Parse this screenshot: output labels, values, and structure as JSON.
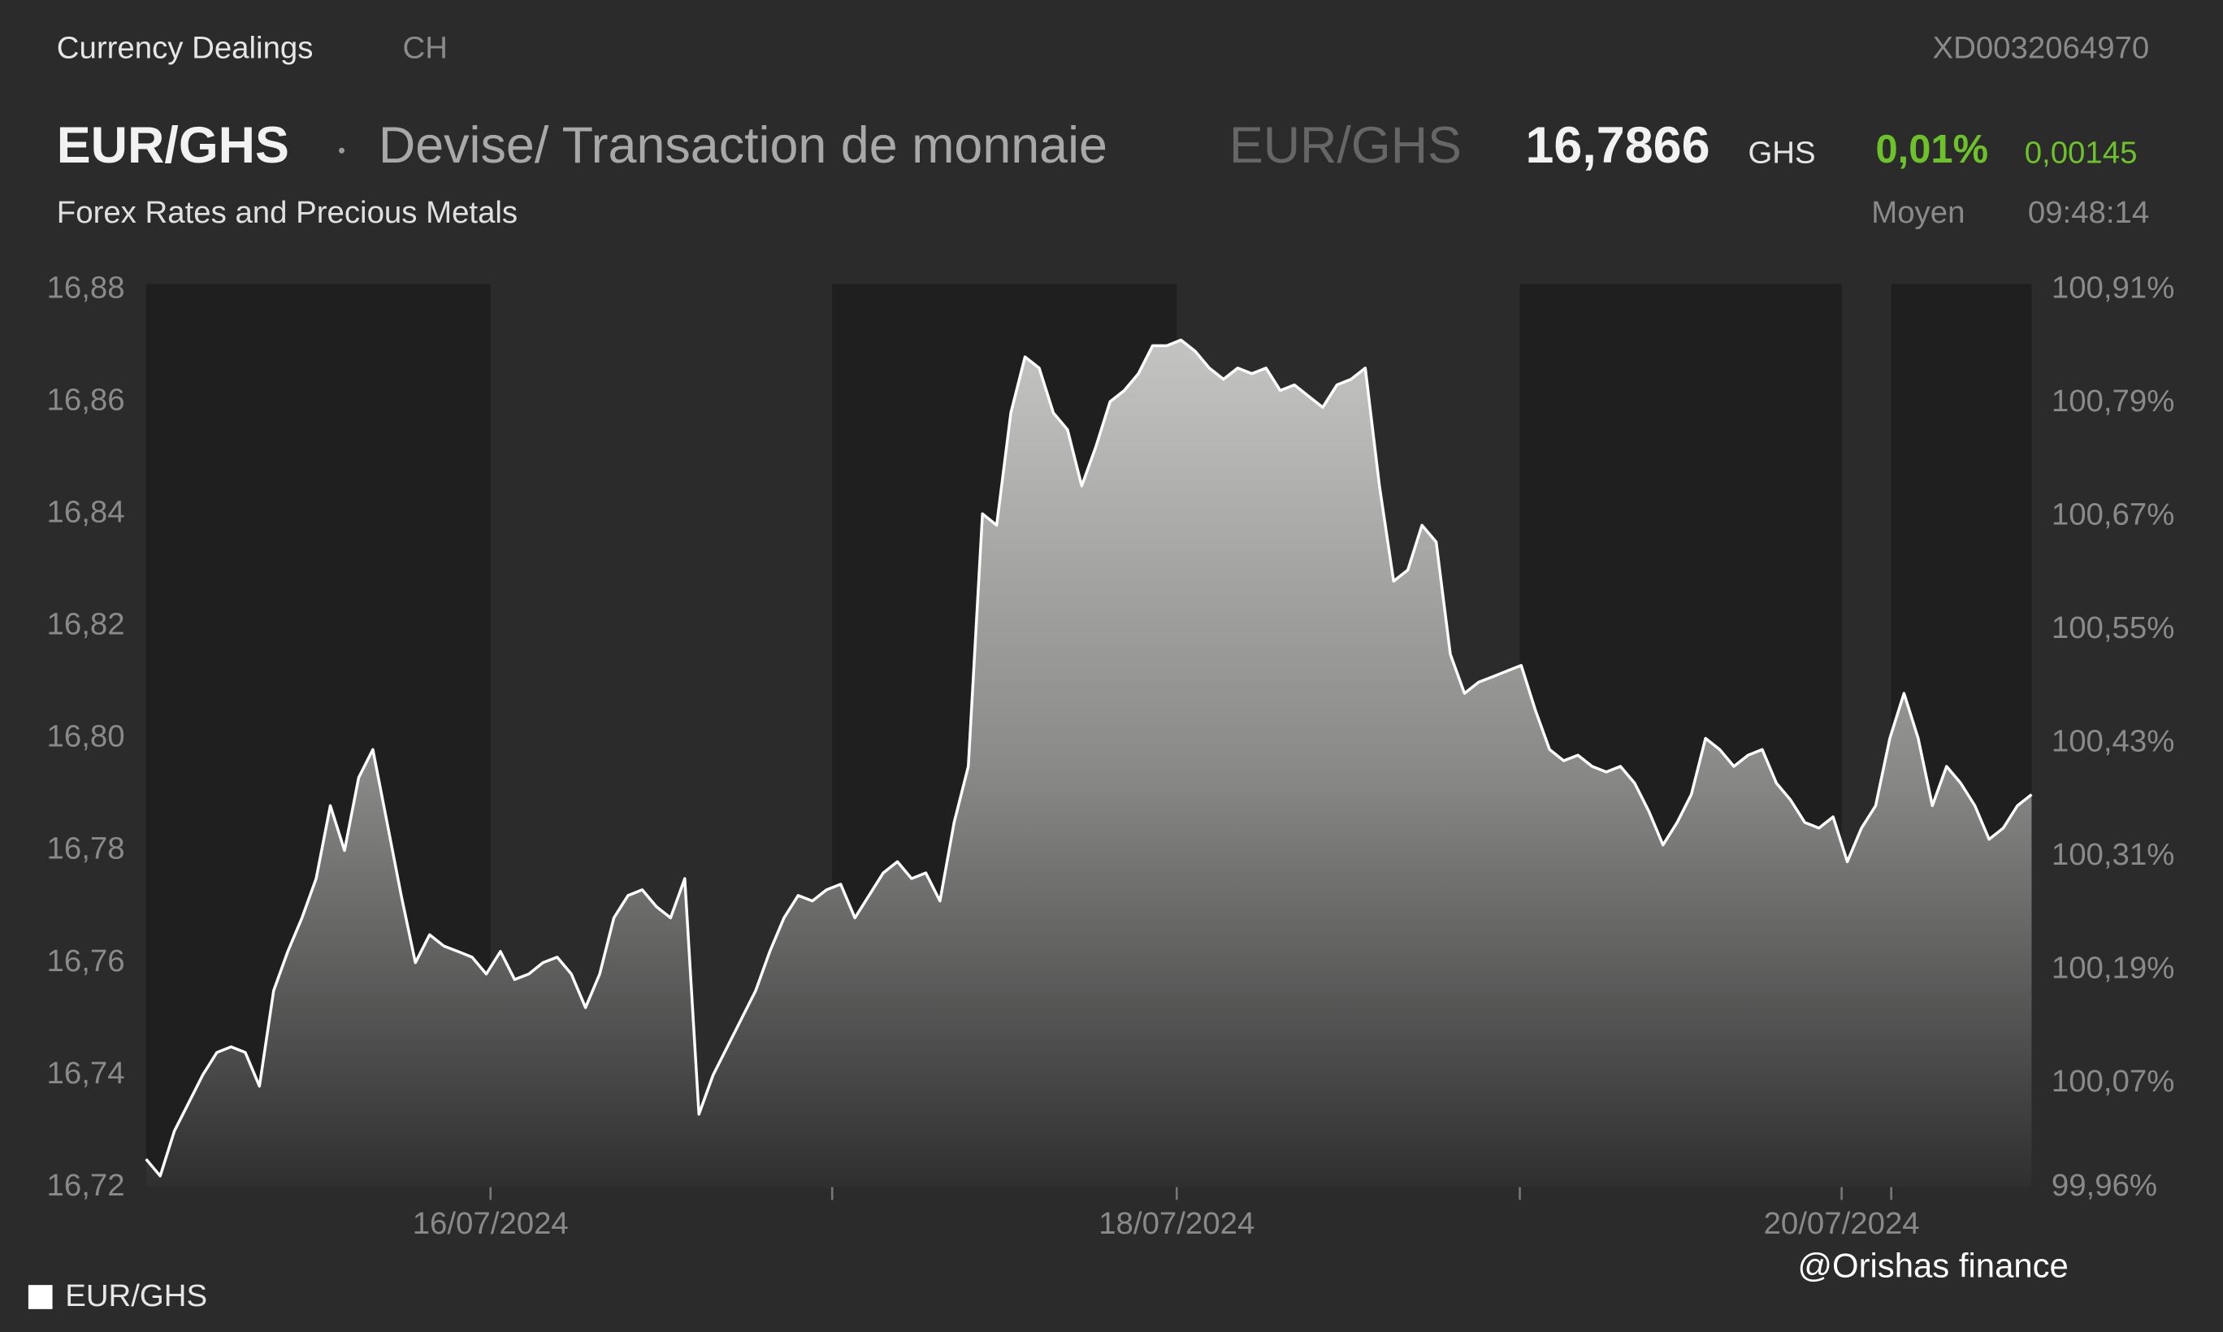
{
  "header": {
    "title": "Currency Dealings",
    "country": "CH",
    "isin": "XD0032064970",
    "pair": "EUR/GHS",
    "description": "Devise/ Transaction de monnaie",
    "pair_code": "EUR/GHS",
    "price": "16,7866",
    "currency": "GHS",
    "change_pct": "0,01%",
    "change": "0,00145",
    "subtitle": "Forex Rates and Precious Metals",
    "price_type": "Moyen",
    "time": "09:48:14"
  },
  "watermark": "@Orishas finance",
  "chart_data": {
    "type": "area",
    "series": [
      {
        "name": "EUR/GHS",
        "color": "#ffffff",
        "values": [
          16.725,
          16.722,
          16.73,
          16.735,
          16.74,
          16.744,
          16.745,
          16.744,
          16.738,
          16.755,
          16.762,
          16.768,
          16.775,
          16.788,
          16.78,
          16.793,
          16.798,
          16.785,
          16.772,
          16.76,
          16.765,
          16.763,
          16.762,
          16.761,
          16.758,
          16.762,
          16.757,
          16.758,
          16.76,
          16.761,
          16.758,
          16.752,
          16.758,
          16.768,
          16.772,
          16.773,
          16.77,
          16.768,
          16.775,
          16.733,
          16.74,
          16.745,
          16.75,
          16.755,
          16.762,
          16.768,
          16.772,
          16.771,
          16.773,
          16.774,
          16.768,
          16.772,
          16.776,
          16.778,
          16.775,
          16.776,
          16.771,
          16.785,
          16.795,
          16.84,
          16.838,
          16.858,
          16.868,
          16.866,
          16.858,
          16.855,
          16.845,
          16.852,
          16.86,
          16.862,
          16.865,
          16.87,
          16.87,
          16.871,
          16.869,
          16.866,
          16.864,
          16.866,
          16.865,
          16.866,
          16.862,
          16.863,
          16.861,
          16.859,
          16.863,
          16.864,
          16.866,
          16.845,
          16.828,
          16.83,
          16.838,
          16.835,
          16.815,
          16.808,
          16.81,
          16.811,
          16.812,
          16.813,
          16.805,
          16.798,
          16.796,
          16.797,
          16.795,
          16.794,
          16.795,
          16.792,
          16.787,
          16.781,
          16.785,
          16.79,
          16.8,
          16.798,
          16.795,
          16.797,
          16.798,
          16.792,
          16.789,
          16.785,
          16.784,
          16.786,
          16.778,
          16.784,
          16.788,
          16.8,
          16.808,
          16.8,
          16.788,
          16.795,
          16.792,
          16.788,
          16.782,
          16.784,
          16.788,
          16.79
        ]
      }
    ],
    "xlim": [
      0,
      133
    ],
    "xticks": [
      {
        "value": 24.3,
        "label": "16/07/2024"
      },
      {
        "value": 48.4,
        "label": ""
      },
      {
        "value": 72.7,
        "label": "18/07/2024"
      },
      {
        "value": 96.9,
        "label": ""
      },
      {
        "value": 119.6,
        "label": "20/07/2024"
      },
      {
        "value": 123.1,
        "label": ""
      }
    ],
    "ylim": [
      16.72,
      16.88
    ],
    "yticks": [
      {
        "value": 16.72,
        "label": "16,72"
      },
      {
        "value": 16.74,
        "label": "16,74"
      },
      {
        "value": 16.76,
        "label": "16,76"
      },
      {
        "value": 16.78,
        "label": "16,78"
      },
      {
        "value": 16.8,
        "label": "16,80"
      },
      {
        "value": 16.82,
        "label": "16,82"
      },
      {
        "value": 16.84,
        "label": "16,84"
      },
      {
        "value": 16.86,
        "label": "16,86"
      },
      {
        "value": 16.88,
        "label": "16,88"
      }
    ],
    "y2lim": [
      99.96,
      100.91
    ],
    "y2ticks": [
      {
        "value": 99.96,
        "label": "99,96%"
      },
      {
        "value": 100.07,
        "label": "100,07%"
      },
      {
        "value": 100.19,
        "label": "100,19%"
      },
      {
        "value": 100.31,
        "label": "100,31%"
      },
      {
        "value": 100.43,
        "label": "100,43%"
      },
      {
        "value": 100.55,
        "label": "100,55%"
      },
      {
        "value": 100.67,
        "label": "100,67%"
      },
      {
        "value": 100.79,
        "label": "100,79%"
      },
      {
        "value": 100.91,
        "label": "100,91%"
      }
    ],
    "legend": "bottom-left"
  }
}
